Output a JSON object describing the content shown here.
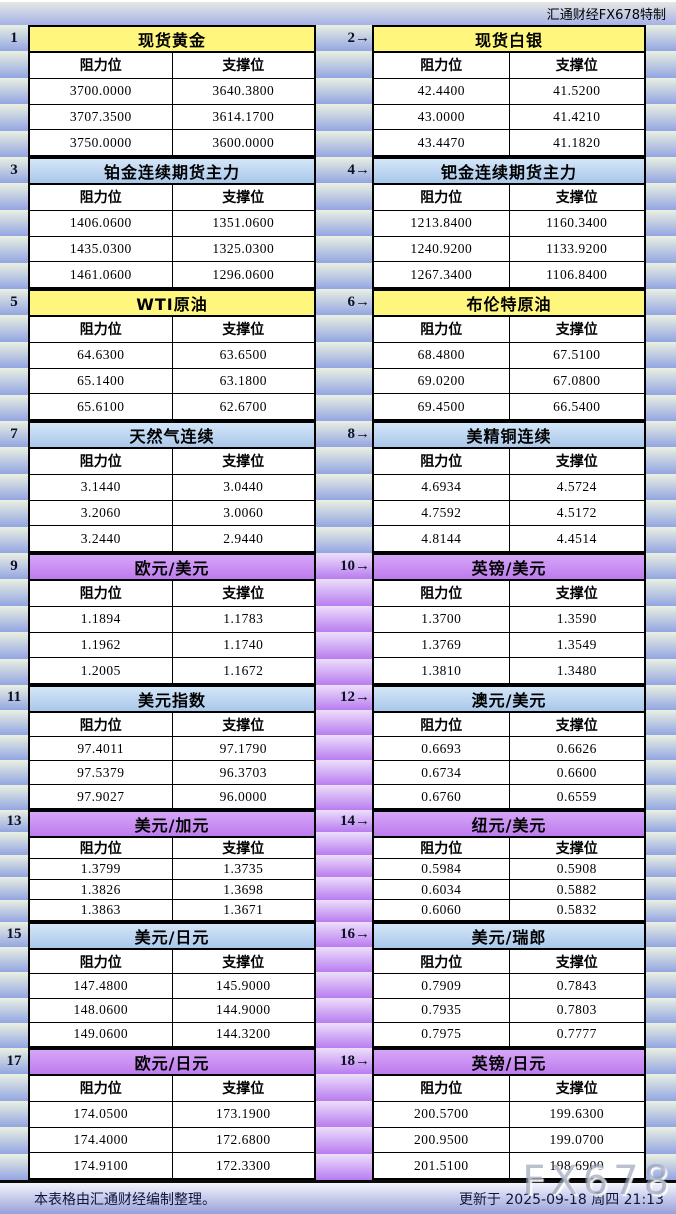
{
  "header": {
    "credit": "汇通财经FX678特制"
  },
  "column_labels": {
    "resistance": "阻力位",
    "support": "支撑位"
  },
  "colors": {
    "yellow_header": "#FFF77D",
    "blue_header": "#BDD7EE",
    "purple_header": "#C98BF2",
    "margin_stripe": "#93A5E2",
    "gutter_purple_stripe": "#B87CF0"
  },
  "blocks": [
    {
      "num": "1",
      "title": "现货黄金",
      "theme": "yellow",
      "resistance": [
        "3700.0000",
        "3707.3500",
        "3750.0000"
      ],
      "support": [
        "3640.3800",
        "3614.1700",
        "3600.0000"
      ]
    },
    {
      "num": "2→",
      "title": "现货白银",
      "theme": "yellow",
      "resistance": [
        "42.4400",
        "43.0000",
        "43.4470"
      ],
      "support": [
        "41.5200",
        "41.4210",
        "41.1820"
      ]
    },
    {
      "num": "3",
      "title": "铂金连续期货主力",
      "theme": "blue",
      "resistance": [
        "1406.0600",
        "1435.0300",
        "1461.0600"
      ],
      "support": [
        "1351.0600",
        "1325.0300",
        "1296.0600"
      ]
    },
    {
      "num": "4→",
      "title": "钯金连续期货主力",
      "theme": "blue",
      "resistance": [
        "1213.8400",
        "1240.9200",
        "1267.3400"
      ],
      "support": [
        "1160.3400",
        "1133.9200",
        "1106.8400"
      ]
    },
    {
      "num": "5",
      "title": "WTI原油",
      "theme": "yellow",
      "resistance": [
        "64.6300",
        "65.1400",
        "65.6100"
      ],
      "support": [
        "63.6500",
        "63.1800",
        "62.6700"
      ]
    },
    {
      "num": "6→",
      "title": "布伦特原油",
      "theme": "yellow",
      "resistance": [
        "68.4800",
        "69.0200",
        "69.4500"
      ],
      "support": [
        "67.5100",
        "67.0800",
        "66.5400"
      ]
    },
    {
      "num": "7",
      "title": "天然气连续",
      "theme": "blue",
      "resistance": [
        "3.1440",
        "3.2060",
        "3.2440"
      ],
      "support": [
        "3.0440",
        "3.0060",
        "2.9440"
      ]
    },
    {
      "num": "8→",
      "title": "美精铜连续",
      "theme": "blue",
      "resistance": [
        "4.6934",
        "4.7592",
        "4.8144"
      ],
      "support": [
        "4.5724",
        "4.5172",
        "4.4514"
      ]
    },
    {
      "num": "9",
      "title": "欧元/美元",
      "theme": "purple",
      "resistance": [
        "1.1894",
        "1.1962",
        "1.2005"
      ],
      "support": [
        "1.1783",
        "1.1740",
        "1.1672"
      ]
    },
    {
      "num": "10→",
      "title": "英镑/美元",
      "theme": "purple",
      "resistance": [
        "1.3700",
        "1.3769",
        "1.3810"
      ],
      "support": [
        "1.3590",
        "1.3549",
        "1.3480"
      ]
    },
    {
      "num": "11",
      "title": "美元指数",
      "theme": "blue",
      "resistance": [
        "97.4011",
        "97.5379",
        "97.9027"
      ],
      "support": [
        "97.1790",
        "96.3703",
        "96.0000"
      ]
    },
    {
      "num": "12→",
      "title": "澳元/美元",
      "theme": "blue",
      "resistance": [
        "0.6693",
        "0.6734",
        "0.6760"
      ],
      "support": [
        "0.6626",
        "0.6600",
        "0.6559"
      ]
    },
    {
      "num": "13",
      "title": "美元/加元",
      "theme": "purple",
      "resistance": [
        "1.3799",
        "1.3826",
        "1.3863"
      ],
      "support": [
        "1.3735",
        "1.3698",
        "1.3671"
      ]
    },
    {
      "num": "14→",
      "title": "纽元/美元",
      "theme": "purple",
      "resistance": [
        "0.5984",
        "0.6034",
        "0.6060"
      ],
      "support": [
        "0.5908",
        "0.5882",
        "0.5832"
      ]
    },
    {
      "num": "15",
      "title": "美元/日元",
      "theme": "blue",
      "resistance": [
        "147.4800",
        "148.0600",
        "149.0600"
      ],
      "support": [
        "145.9000",
        "144.9000",
        "144.3200"
      ]
    },
    {
      "num": "16→",
      "title": "美元/瑞郎",
      "theme": "blue",
      "resistance": [
        "0.7909",
        "0.7935",
        "0.7975"
      ],
      "support": [
        "0.7843",
        "0.7803",
        "0.7777"
      ]
    },
    {
      "num": "17",
      "title": "欧元/日元",
      "theme": "purple",
      "resistance": [
        "174.0500",
        "174.4000",
        "174.9100"
      ],
      "support": [
        "173.1900",
        "172.6800",
        "172.3300"
      ]
    },
    {
      "num": "18→",
      "title": "英镑/日元",
      "theme": "purple",
      "resistance": [
        "200.5700",
        "200.9500",
        "201.5100"
      ],
      "support": [
        "199.6300",
        "199.0700",
        "198.6900"
      ]
    }
  ],
  "footer": {
    "note": "本表格由汇通财经编制整理。",
    "updated": "更新于 2025-09-18 周四 21:13"
  },
  "watermark": "FX678"
}
